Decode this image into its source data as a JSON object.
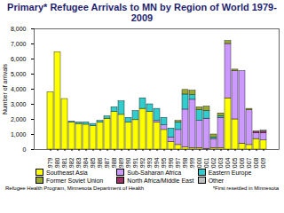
{
  "chart_data": {
    "type": "bar",
    "stacked": true,
    "title": "Primary* Refugee Arrivals to MN by Region of World 1979-2009",
    "y_label": "Number of arrivals",
    "source": "Refugee Health Program, Minnesota Department of Health",
    "footnote": "*First resettled in Minnesota",
    "categories": [
      "1979",
      "1980",
      "1981",
      "1982",
      "1983",
      "1984",
      "1985",
      "1986",
      "1987",
      "1988",
      "1989",
      "1990",
      "1991",
      "1992",
      "1993",
      "1994",
      "1995",
      "1996",
      "1997",
      "1998",
      "1999",
      "2000",
      "2001",
      "2002",
      "2003",
      "2004",
      "2005",
      "2006",
      "2007",
      "2008",
      "2009"
    ],
    "series": [
      {
        "name": "Southeast Asia",
        "color": "#ffff00",
        "values": [
          3800,
          6450,
          3350,
          1800,
          1700,
          1650,
          1550,
          1800,
          2050,
          2500,
          2300,
          1800,
          1950,
          2700,
          2500,
          1800,
          1300,
          500,
          300,
          150,
          100,
          100,
          50,
          100,
          100,
          3400,
          2000,
          400,
          300,
          700,
          600
        ]
      },
      {
        "name": "Sub-Saharan Africa",
        "color": "#cc99ff",
        "values": [
          0,
          0,
          0,
          0,
          0,
          0,
          0,
          0,
          0,
          0,
          0,
          0,
          0,
          0,
          0,
          100,
          300,
          300,
          1000,
          2500,
          3200,
          1800,
          2000,
          600,
          2000,
          3600,
          3200,
          4800,
          2300,
          400,
          500
        ]
      },
      {
        "name": "Eastern Europe",
        "color": "#33cccc",
        "values": [
          0,
          0,
          0,
          50,
          100,
          150,
          150,
          100,
          150,
          300,
          900,
          300,
          600,
          700,
          500,
          800,
          500,
          600,
          500,
          1000,
          300,
          700,
          500,
          100,
          100,
          0,
          0,
          0,
          0,
          0,
          0
        ]
      },
      {
        "name": "Former Soviet Union",
        "color": "#99a832",
        "values": [
          0,
          0,
          0,
          0,
          0,
          0,
          0,
          0,
          0,
          0,
          0,
          0,
          0,
          0,
          0,
          0,
          0,
          0,
          100,
          300,
          300,
          200,
          300,
          200,
          200,
          200,
          100,
          0,
          100,
          0,
          0
        ]
      },
      {
        "name": "North Africa/Middle East",
        "color": "#993366",
        "values": [
          0,
          0,
          0,
          0,
          0,
          0,
          0,
          0,
          0,
          0,
          0,
          0,
          0,
          0,
          0,
          0,
          0,
          0,
          0,
          0,
          0,
          0,
          0,
          0,
          0,
          0,
          0,
          0,
          0,
          100,
          100
        ]
      },
      {
        "name": "Other",
        "color": "#c0c0c0",
        "values": [
          0,
          0,
          0,
          0,
          0,
          0,
          0,
          0,
          0,
          0,
          0,
          0,
          0,
          0,
          0,
          0,
          0,
          0,
          0,
          0,
          0,
          0,
          0,
          0,
          0,
          0,
          0,
          0,
          0,
          0,
          50
        ]
      }
    ],
    "ylim": [
      0,
      8000
    ],
    "yticks": [
      0,
      1000,
      2000,
      3000,
      4000,
      5000,
      6000,
      7000,
      8000
    ],
    "grid": false,
    "legend": "bottom"
  }
}
